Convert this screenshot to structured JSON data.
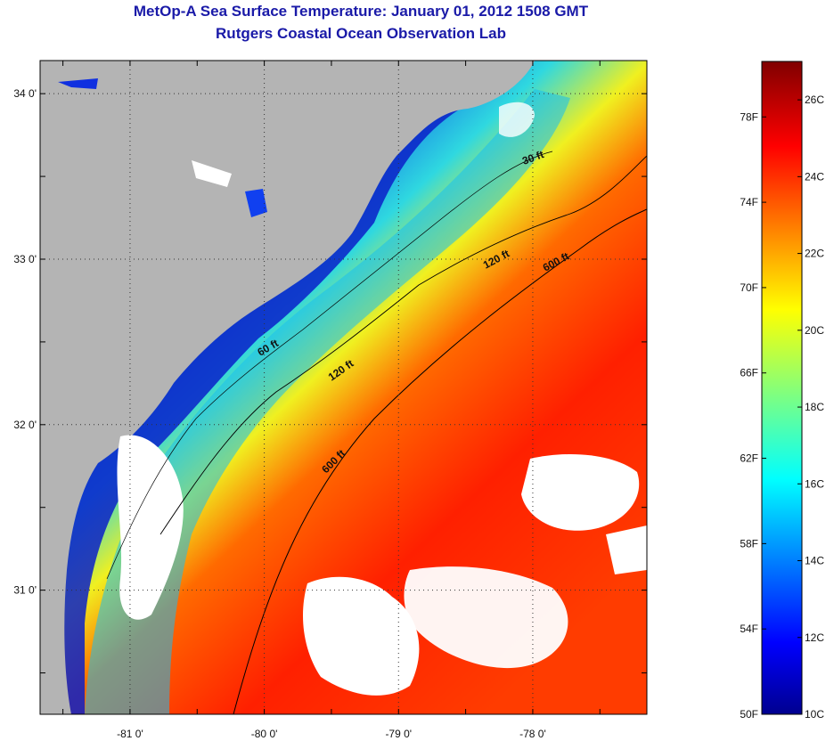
{
  "title_line1": "MetOp-A Sea Surface Temperature:  January 01, 2012 1508 GMT",
  "title_line2": "Rutgers Coastal Ocean Observation Lab",
  "map": {
    "lon_labels": [
      "-81 0'",
      "-80 0'",
      "-79 0'",
      "-78 0'"
    ],
    "lon_values": [
      -81,
      -80,
      -79,
      -78
    ],
    "lat_labels": [
      "34 0'",
      "33 0'",
      "32 0'",
      "31 0'"
    ],
    "lat_values": [
      34,
      33,
      32,
      31
    ],
    "lon_range": [
      -81.67,
      -77.15
    ],
    "lat_range": [
      30.25,
      34.2
    ],
    "contours": [
      {
        "label": "120 ft"
      },
      {
        "label": "120 ft"
      },
      {
        "label": "600 ft"
      },
      {
        "label": "600 ft"
      },
      {
        "label": "60 ft"
      },
      {
        "label": "30 ft"
      }
    ],
    "colors": {
      "land": "#b4b4b4",
      "cloud": "#ffffff",
      "cold": "#0000c8",
      "warm": "#ff2a00"
    }
  },
  "colorbar": {
    "fahrenheit_labels": [
      "78F",
      "74F",
      "70F",
      "66F",
      "62F",
      "58F",
      "54F",
      "50F"
    ],
    "fahrenheit_values": [
      78,
      74,
      70,
      66,
      62,
      58,
      54,
      50
    ],
    "celsius_labels": [
      "26C",
      "24C",
      "22C",
      "20C",
      "18C",
      "16C",
      "14C",
      "12C",
      "10C"
    ],
    "celsius_values": [
      26,
      24,
      22,
      20,
      18,
      16,
      14,
      12,
      10
    ],
    "range_c": [
      10,
      27
    ],
    "colormap": "jet"
  }
}
